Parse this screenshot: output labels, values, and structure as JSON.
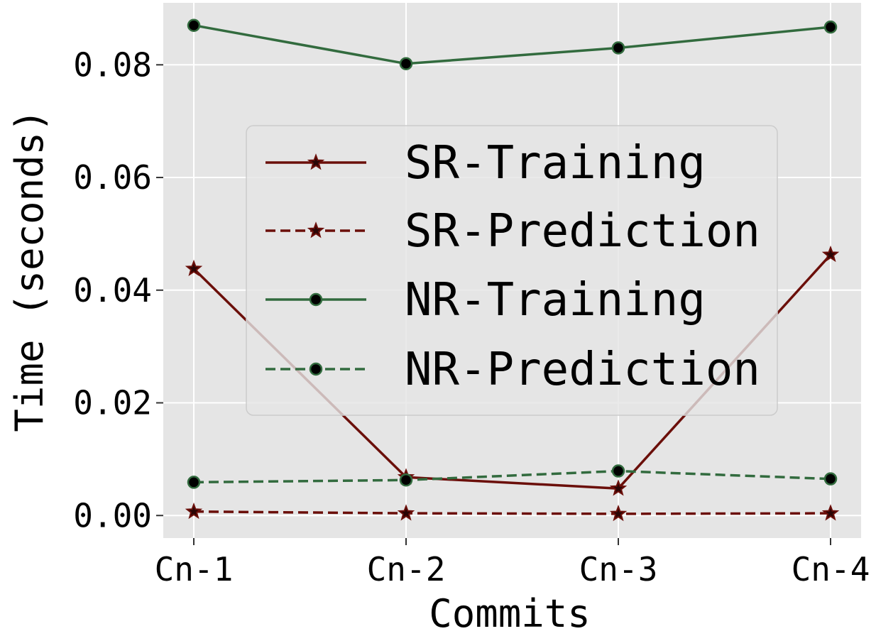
{
  "chart_data": {
    "type": "line",
    "xlabel": "Commits",
    "ylabel": "Time (seconds)",
    "categories": [
      "Cn-1",
      "Cn-2",
      "Cn-3",
      "Cn-4"
    ],
    "ylim": [
      -0.004,
      0.091
    ],
    "yticks": [
      0.0,
      0.02,
      0.04,
      0.06,
      0.08
    ],
    "ytick_labels": [
      "0.00",
      "0.02",
      "0.04",
      "0.06",
      "0.08"
    ],
    "grid": true,
    "legend_position": "center",
    "series": [
      {
        "name": "SR-Training",
        "values": [
          0.0438,
          0.0068,
          0.0048,
          0.0463
        ],
        "color": "#6b0f0a",
        "linestyle": "solid",
        "marker": "star"
      },
      {
        "name": "SR-Prediction",
        "values": [
          0.0007,
          0.0004,
          0.0003,
          0.0004
        ],
        "color": "#6b0f0a",
        "linestyle": "dashed",
        "marker": "star"
      },
      {
        "name": "NR-Training",
        "values": [
          0.087,
          0.0802,
          0.083,
          0.0867
        ],
        "color": "#326b3e",
        "linestyle": "solid",
        "marker": "circle"
      },
      {
        "name": "NR-Prediction",
        "values": [
          0.0059,
          0.0063,
          0.0079,
          0.0065
        ],
        "color": "#326b3e",
        "linestyle": "dashed",
        "marker": "circle"
      }
    ]
  }
}
